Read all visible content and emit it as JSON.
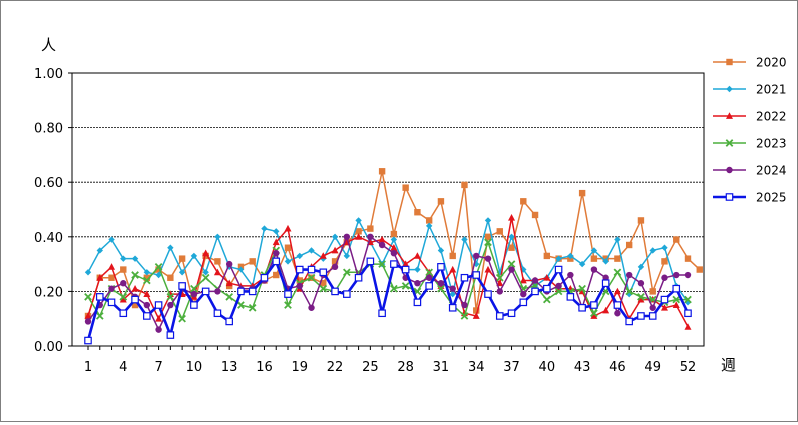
{
  "chart_data": {
    "type": "line",
    "y_unit_label": "人",
    "x_unit_label": "週",
    "ylim": [
      0,
      1.0
    ],
    "y_ticks": [
      "0.00",
      "0.20",
      "0.40",
      "0.60",
      "0.80",
      "1.00"
    ],
    "x_ticks": [
      1,
      4,
      7,
      10,
      13,
      16,
      19,
      22,
      25,
      28,
      31,
      34,
      37,
      40,
      43,
      46,
      49,
      52
    ],
    "grid": "horizontal",
    "legend_position": "right",
    "series": [
      {
        "name": "2020",
        "color": "#e07b39",
        "marker": "square",
        "values": [
          0.11,
          0.25,
          0.25,
          0.28,
          0.15,
          0.25,
          0.28,
          0.25,
          0.32,
          0.15,
          0.33,
          0.31,
          0.22,
          0.29,
          0.31,
          0.24,
          0.26,
          0.36,
          0.24,
          0.25,
          0.23,
          0.31,
          0.38,
          0.42,
          0.43,
          0.64,
          0.41,
          0.58,
          0.49,
          0.46,
          0.53,
          0.33,
          0.59,
          0.13,
          0.4,
          0.42,
          0.36,
          0.53,
          0.48,
          0.33,
          0.32,
          0.32,
          0.56,
          0.32,
          0.32,
          0.32,
          0.37,
          0.46,
          0.2,
          0.31,
          0.39,
          0.32,
          0.28
        ]
      },
      {
        "name": "2021",
        "color": "#1fa8d8",
        "marker": "diamond",
        "values": [
          0.27,
          0.35,
          0.39,
          0.32,
          0.32,
          0.27,
          0.26,
          0.36,
          0.27,
          0.33,
          0.27,
          0.4,
          0.29,
          0.28,
          0.22,
          0.43,
          0.42,
          0.31,
          0.33,
          0.35,
          0.32,
          0.4,
          0.33,
          0.46,
          0.38,
          0.3,
          0.39,
          0.28,
          0.28,
          0.44,
          0.35,
          0.19,
          0.39,
          0.3,
          0.46,
          0.27,
          0.4,
          0.28,
          0.22,
          0.25,
          0.32,
          0.33,
          0.3,
          0.35,
          0.31,
          0.39,
          0.19,
          0.29,
          0.35,
          0.36,
          0.22,
          0.16
        ]
      },
      {
        "name": "2022",
        "color": "#e3141b",
        "marker": "triangle",
        "values": [
          0.11,
          0.25,
          0.29,
          0.17,
          0.21,
          0.19,
          0.1,
          0.19,
          0.19,
          0.18,
          0.34,
          0.27,
          0.23,
          0.22,
          0.22,
          0.25,
          0.38,
          0.43,
          0.21,
          0.29,
          0.33,
          0.35,
          0.38,
          0.4,
          0.38,
          0.39,
          0.36,
          0.3,
          0.33,
          0.27,
          0.22,
          0.28,
          0.12,
          0.11,
          0.28,
          0.23,
          0.47,
          0.24,
          0.24,
          0.25,
          0.21,
          0.21,
          0.2,
          0.11,
          0.13,
          0.2,
          0.1,
          0.17,
          0.17,
          0.14,
          0.15,
          0.07
        ]
      },
      {
        "name": "2023",
        "color": "#4caf3d",
        "marker": "x",
        "values": [
          0.18,
          0.11,
          0.21,
          0.18,
          0.26,
          0.24,
          0.29,
          0.18,
          0.1,
          0.21,
          0.25,
          0.21,
          0.18,
          0.15,
          0.14,
          0.26,
          0.35,
          0.15,
          0.23,
          0.25,
          0.21,
          0.2,
          0.27,
          0.27,
          0.3,
          0.3,
          0.21,
          0.22,
          0.2,
          0.27,
          0.21,
          0.15,
          0.11,
          0.26,
          0.38,
          0.25,
          0.3,
          0.21,
          0.22,
          0.17,
          0.2,
          0.2,
          0.21,
          0.12,
          0.2,
          0.27,
          0.2,
          0.18,
          0.17,
          0.16,
          0.17,
          0.17
        ]
      },
      {
        "name": "2024",
        "color": "#7a1d86",
        "marker": "circle",
        "values": [
          0.09,
          0.15,
          0.21,
          0.23,
          0.18,
          0.15,
          0.06,
          0.15,
          0.21,
          0.19,
          0.2,
          0.2,
          0.3,
          0.21,
          0.21,
          0.24,
          0.34,
          0.21,
          0.22,
          0.14,
          0.26,
          0.29,
          0.4,
          0.25,
          0.4,
          0.37,
          0.34,
          0.25,
          0.23,
          0.25,
          0.23,
          0.21,
          0.15,
          0.33,
          0.32,
          0.2,
          0.28,
          0.19,
          0.24,
          0.2,
          0.22,
          0.26,
          0.14,
          0.28,
          0.25,
          0.12,
          0.26,
          0.23,
          0.14,
          0.25,
          0.26,
          0.26
        ]
      },
      {
        "name": "2025",
        "color": "#0a14e6",
        "marker": "hollow-square",
        "values": [
          0.02,
          0.18,
          0.16,
          0.12,
          0.17,
          0.11,
          0.15,
          0.04,
          0.22,
          0.15,
          0.2,
          0.12,
          0.09,
          0.2,
          0.2,
          0.25,
          0.31,
          0.19,
          0.28,
          0.28,
          0.27,
          0.2,
          0.19,
          0.25,
          0.31,
          0.12,
          0.3,
          0.28,
          0.16,
          0.22,
          0.29,
          0.14,
          0.25,
          0.26,
          0.19,
          0.11,
          0.12,
          0.16,
          0.2,
          0.21,
          0.28,
          0.18,
          0.14,
          0.15,
          0.23,
          0.15,
          0.09,
          0.11,
          0.11,
          0.17,
          0.21,
          0.12
        ]
      }
    ]
  }
}
